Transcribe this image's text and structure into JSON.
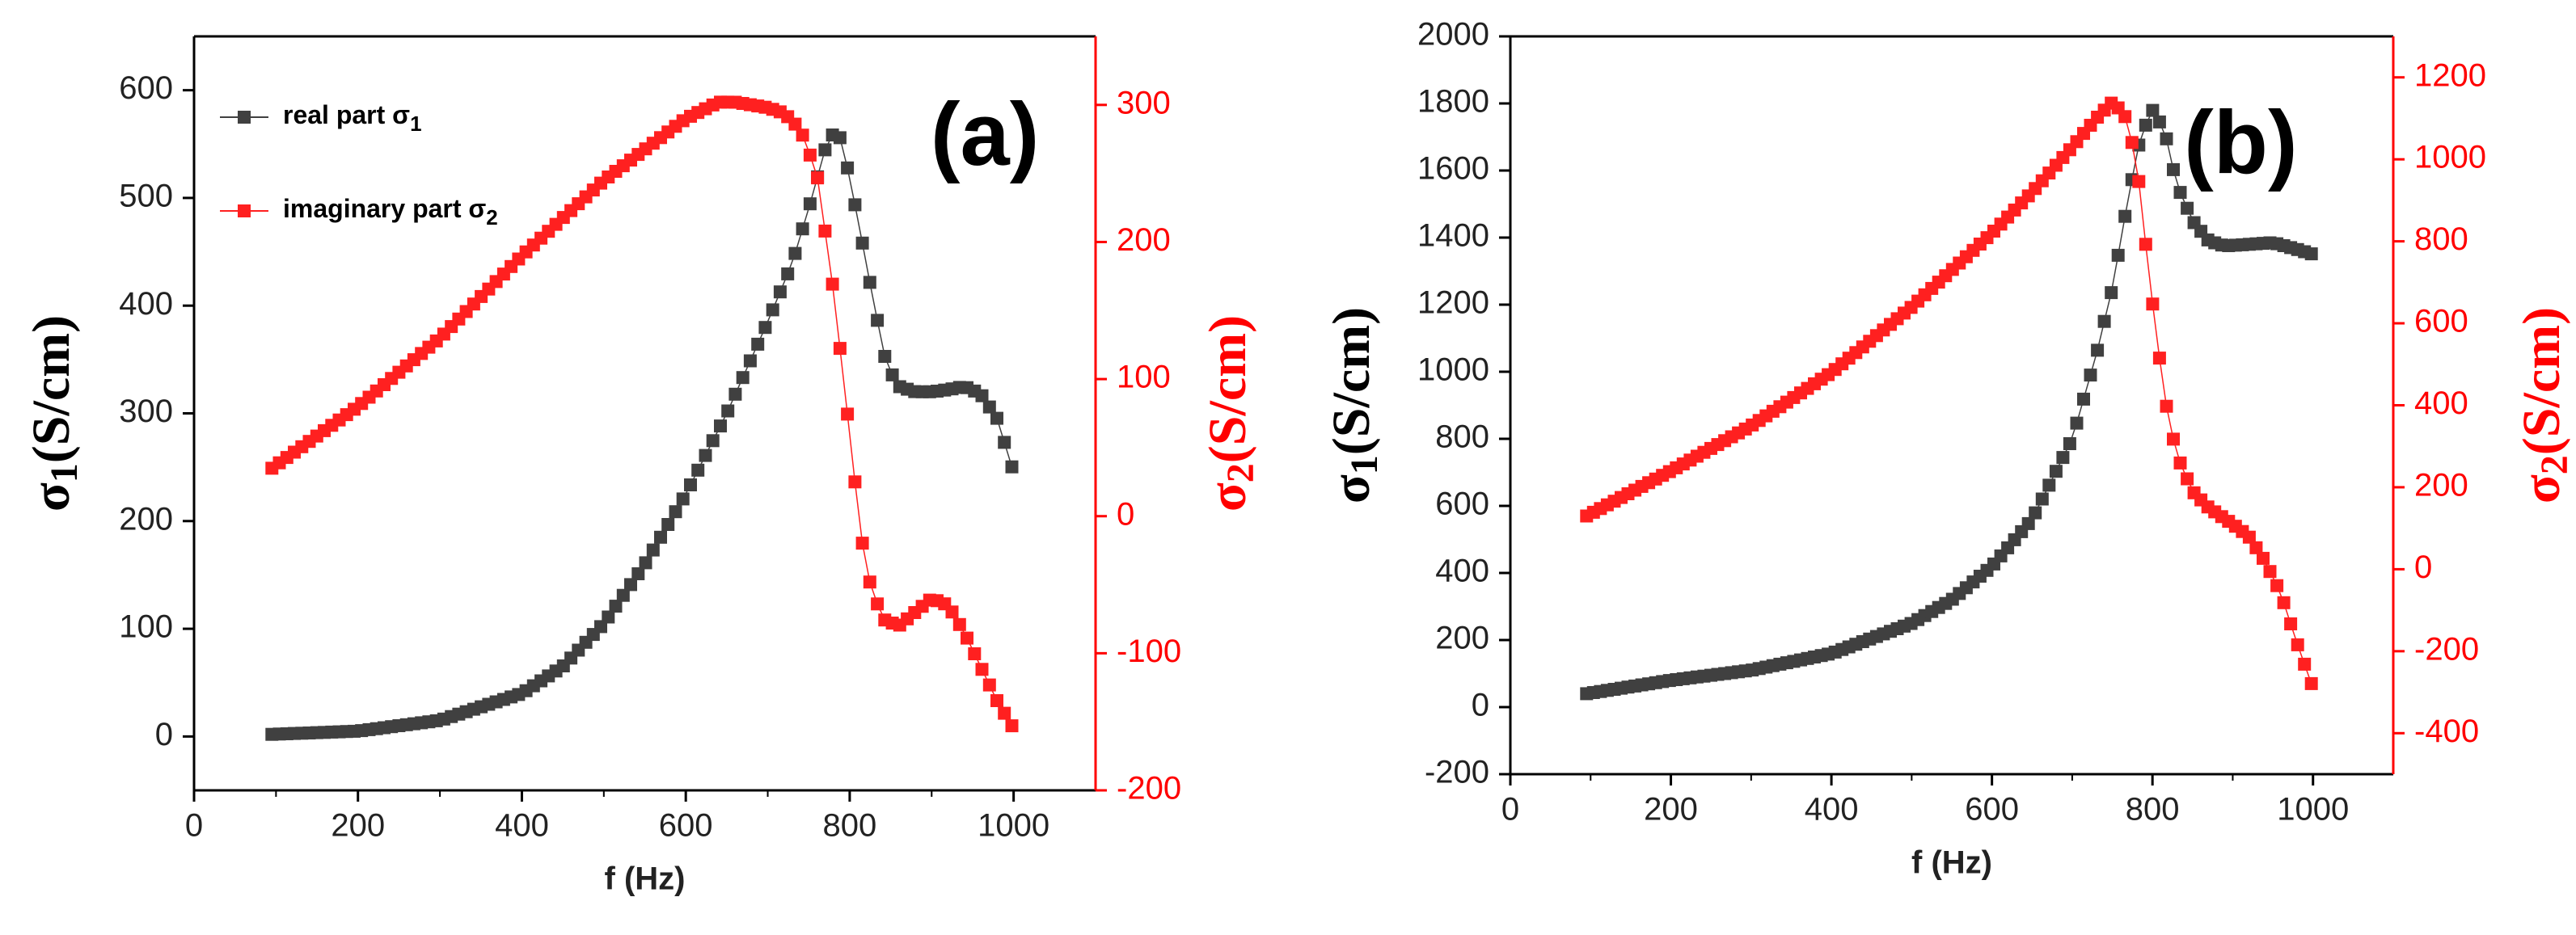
{
  "colors": {
    "series1": "#404040",
    "series2": "#ff2020",
    "axis_right": "#ff0000",
    "axis_left": "#000000"
  },
  "chart_data": [
    {
      "type": "scatter",
      "panel_label": "(a)",
      "xlabel": "f (Hz)",
      "ylabel_left": {
        "base": "σ",
        "sub": "1",
        "rest": "(S/cm)"
      },
      "ylabel_right": {
        "base": "σ",
        "sub": "2",
        "rest": "(S/cm)"
      },
      "xlim": [
        0,
        1100
      ],
      "ylim_left": [
        -50,
        650
      ],
      "ylim_right": [
        -200,
        350
      ],
      "xticks": [
        0,
        200,
        400,
        600,
        800,
        1000
      ],
      "yticks_left": [
        0,
        100,
        200,
        300,
        400,
        500,
        600
      ],
      "yticks_right": [
        -200,
        -100,
        0,
        100,
        200,
        300
      ],
      "legend": [
        {
          "base": "real part σ",
          "sub": "1"
        },
        {
          "base": "imaginary part σ",
          "sub": "2"
        }
      ],
      "x_start": 95,
      "x_step": 9.12,
      "series": [
        {
          "name": "real part σ1",
          "axis": "left",
          "anchors": [
            [
              95,
              2
            ],
            [
              200,
              5
            ],
            [
              300,
              15
            ],
            [
              400,
              40
            ],
            [
              450,
              65
            ],
            [
              500,
              105
            ],
            [
              550,
              160
            ],
            [
              600,
              225
            ],
            [
              650,
              300
            ],
            [
              700,
              385
            ],
            [
              730,
              440
            ],
            [
              750,
              490
            ],
            [
              770,
              545
            ],
            [
              780,
              560
            ],
            [
              790,
              555
            ],
            [
              810,
              480
            ],
            [
              830,
              400
            ],
            [
              845,
              345
            ],
            [
              860,
              325
            ],
            [
              880,
              320
            ],
            [
              900,
              320
            ],
            [
              920,
              322
            ],
            [
              940,
              325
            ],
            [
              960,
              318
            ],
            [
              980,
              295
            ],
            [
              1000,
              245
            ]
          ]
        },
        {
          "name": "imaginary part σ2",
          "axis": "right",
          "anchors": [
            [
              95,
              35
            ],
            [
              200,
              80
            ],
            [
              300,
              130
            ],
            [
              400,
              190
            ],
            [
              500,
              245
            ],
            [
              600,
              290
            ],
            [
              640,
              302
            ],
            [
              660,
              302
            ],
            [
              700,
              298
            ],
            [
              720,
              294
            ],
            [
              740,
              282
            ],
            [
              760,
              250
            ],
            [
              780,
              165
            ],
            [
              800,
              60
            ],
            [
              810,
              5
            ],
            [
              820,
              -40
            ],
            [
              840,
              -75
            ],
            [
              860,
              -80
            ],
            [
              880,
              -70
            ],
            [
              900,
              -60
            ],
            [
              920,
              -65
            ],
            [
              940,
              -85
            ],
            [
              960,
              -110
            ],
            [
              980,
              -135
            ],
            [
              1000,
              -155
            ]
          ]
        }
      ]
    },
    {
      "type": "scatter",
      "panel_label": "(b)",
      "xlabel": "f (Hz)",
      "ylabel_left": {
        "base": "σ",
        "sub": "1",
        "rest": "(S/cm)"
      },
      "ylabel_right": {
        "base": "σ",
        "sub": "2",
        "rest": "(S/cm)"
      },
      "xlim": [
        0,
        1100
      ],
      "ylim_left": [
        -200,
        2000
      ],
      "ylim_right": [
        -500,
        1300
      ],
      "xticks": [
        0,
        200,
        400,
        600,
        800,
        1000
      ],
      "yticks_left": [
        -200,
        0,
        200,
        400,
        600,
        800,
        1000,
        1200,
        1400,
        1600,
        1800,
        2000
      ],
      "yticks_right": [
        -400,
        -200,
        0,
        200,
        400,
        600,
        800,
        1000,
        1200
      ],
      "legend": [],
      "x_start": 95,
      "x_step": 8.6,
      "series": [
        {
          "name": "real part σ1",
          "axis": "left",
          "anchors": [
            [
              95,
              40
            ],
            [
              200,
              80
            ],
            [
              300,
              110
            ],
            [
              400,
              160
            ],
            [
              500,
              250
            ],
            [
              550,
              320
            ],
            [
              600,
              420
            ],
            [
              650,
              560
            ],
            [
              700,
              800
            ],
            [
              730,
              1050
            ],
            [
              750,
              1250
            ],
            [
              770,
              1520
            ],
            [
              785,
              1700
            ],
            [
              800,
              1780
            ],
            [
              815,
              1720
            ],
            [
              830,
              1560
            ],
            [
              850,
              1450
            ],
            [
              870,
              1390
            ],
            [
              890,
              1375
            ],
            [
              920,
              1380
            ],
            [
              950,
              1385
            ],
            [
              980,
              1365
            ],
            [
              1000,
              1350
            ]
          ]
        },
        {
          "name": "imaginary part σ2",
          "axis": "right",
          "anchors": [
            [
              95,
              130
            ],
            [
              200,
              240
            ],
            [
              300,
              350
            ],
            [
              400,
              480
            ],
            [
              500,
              640
            ],
            [
              600,
              820
            ],
            [
              650,
              920
            ],
            [
              700,
              1030
            ],
            [
              730,
              1100
            ],
            [
              750,
              1140
            ],
            [
              765,
              1110
            ],
            [
              780,
              1000
            ],
            [
              790,
              820
            ],
            [
              800,
              650
            ],
            [
              815,
              420
            ],
            [
              830,
              280
            ],
            [
              850,
              190
            ],
            [
              870,
              150
            ],
            [
              900,
              110
            ],
            [
              920,
              80
            ],
            [
              940,
              20
            ],
            [
              960,
              -60
            ],
            [
              980,
              -180
            ],
            [
              1000,
              -290
            ]
          ]
        }
      ]
    }
  ]
}
